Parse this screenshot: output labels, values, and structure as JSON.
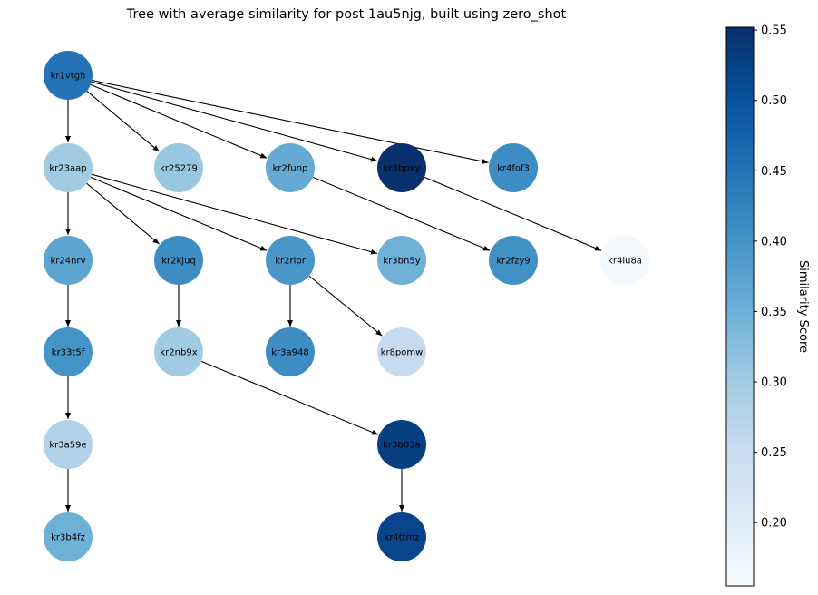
{
  "title": "Tree with average similarity for post 1au5njg, built using zero_shot",
  "colorbar": {
    "label": "Similarity Score",
    "min": 0.155,
    "max": 0.552,
    "ticks": [
      "0.20",
      "0.25",
      "0.30",
      "0.35",
      "0.40",
      "0.45",
      "0.50",
      "0.55"
    ],
    "tick_values": [
      0.2,
      0.25,
      0.3,
      0.35,
      0.4,
      0.45,
      0.5,
      0.55
    ],
    "colormap": "Blues"
  },
  "nodes": [
    {
      "id": "kr1vtgh",
      "score": 0.45,
      "level": 0,
      "col": 0
    },
    {
      "id": "kr23aap",
      "score": 0.3,
      "level": 1,
      "col": 0
    },
    {
      "id": "kr25279",
      "score": 0.31,
      "level": 1,
      "col": 1
    },
    {
      "id": "kr2funp",
      "score": 0.36,
      "level": 1,
      "col": 2
    },
    {
      "id": "kr3bpxy",
      "score": 0.55,
      "level": 1,
      "col": 3
    },
    {
      "id": "kr4fof3",
      "score": 0.41,
      "level": 1,
      "col": 4
    },
    {
      "id": "kr24nrv",
      "score": 0.37,
      "level": 2,
      "col": 0
    },
    {
      "id": "kr2kjuq",
      "score": 0.41,
      "level": 2,
      "col": 1
    },
    {
      "id": "kr2ripr",
      "score": 0.395,
      "level": 2,
      "col": 2
    },
    {
      "id": "kr3bn5y",
      "score": 0.35,
      "level": 2,
      "col": 3
    },
    {
      "id": "kr2fzy9",
      "score": 0.405,
      "level": 2,
      "col": 4
    },
    {
      "id": "kr4iu8a",
      "score": 0.16,
      "level": 2,
      "col": 5
    },
    {
      "id": "kr33t5f",
      "score": 0.4,
      "level": 3,
      "col": 0
    },
    {
      "id": "kr2nb9x",
      "score": 0.3,
      "level": 3,
      "col": 1
    },
    {
      "id": "kr3a948",
      "score": 0.41,
      "level": 3,
      "col": 2
    },
    {
      "id": "kr8pomw",
      "score": 0.255,
      "level": 3,
      "col": 3
    },
    {
      "id": "kr3a59e",
      "score": 0.28,
      "level": 4,
      "col": 0
    },
    {
      "id": "kr3b03a",
      "score": 0.53,
      "level": 4,
      "col": 3
    },
    {
      "id": "kr3b4fz",
      "score": 0.35,
      "level": 5,
      "col": 0
    },
    {
      "id": "kr4ttmz",
      "score": 0.52,
      "level": 5,
      "col": 3
    }
  ],
  "edges": [
    [
      "kr1vtgh",
      "kr23aap"
    ],
    [
      "kr1vtgh",
      "kr25279"
    ],
    [
      "kr1vtgh",
      "kr2funp"
    ],
    [
      "kr1vtgh",
      "kr3bpxy"
    ],
    [
      "kr1vtgh",
      "kr4fof3"
    ],
    [
      "kr23aap",
      "kr24nrv"
    ],
    [
      "kr23aap",
      "kr2kjuq"
    ],
    [
      "kr23aap",
      "kr2ripr"
    ],
    [
      "kr23aap",
      "kr3bn5y"
    ],
    [
      "kr2funp",
      "kr2fzy9"
    ],
    [
      "kr3bpxy",
      "kr4iu8a"
    ],
    [
      "kr24nrv",
      "kr33t5f"
    ],
    [
      "kr2kjuq",
      "kr2nb9x"
    ],
    [
      "kr2ripr",
      "kr3a948"
    ],
    [
      "kr2ripr",
      "kr8pomw"
    ],
    [
      "kr33t5f",
      "kr3a59e"
    ],
    [
      "kr2nb9x",
      "kr3b03a"
    ],
    [
      "kr3a59e",
      "kr3b4fz"
    ],
    [
      "kr3b03a",
      "kr4ttmz"
    ]
  ]
}
